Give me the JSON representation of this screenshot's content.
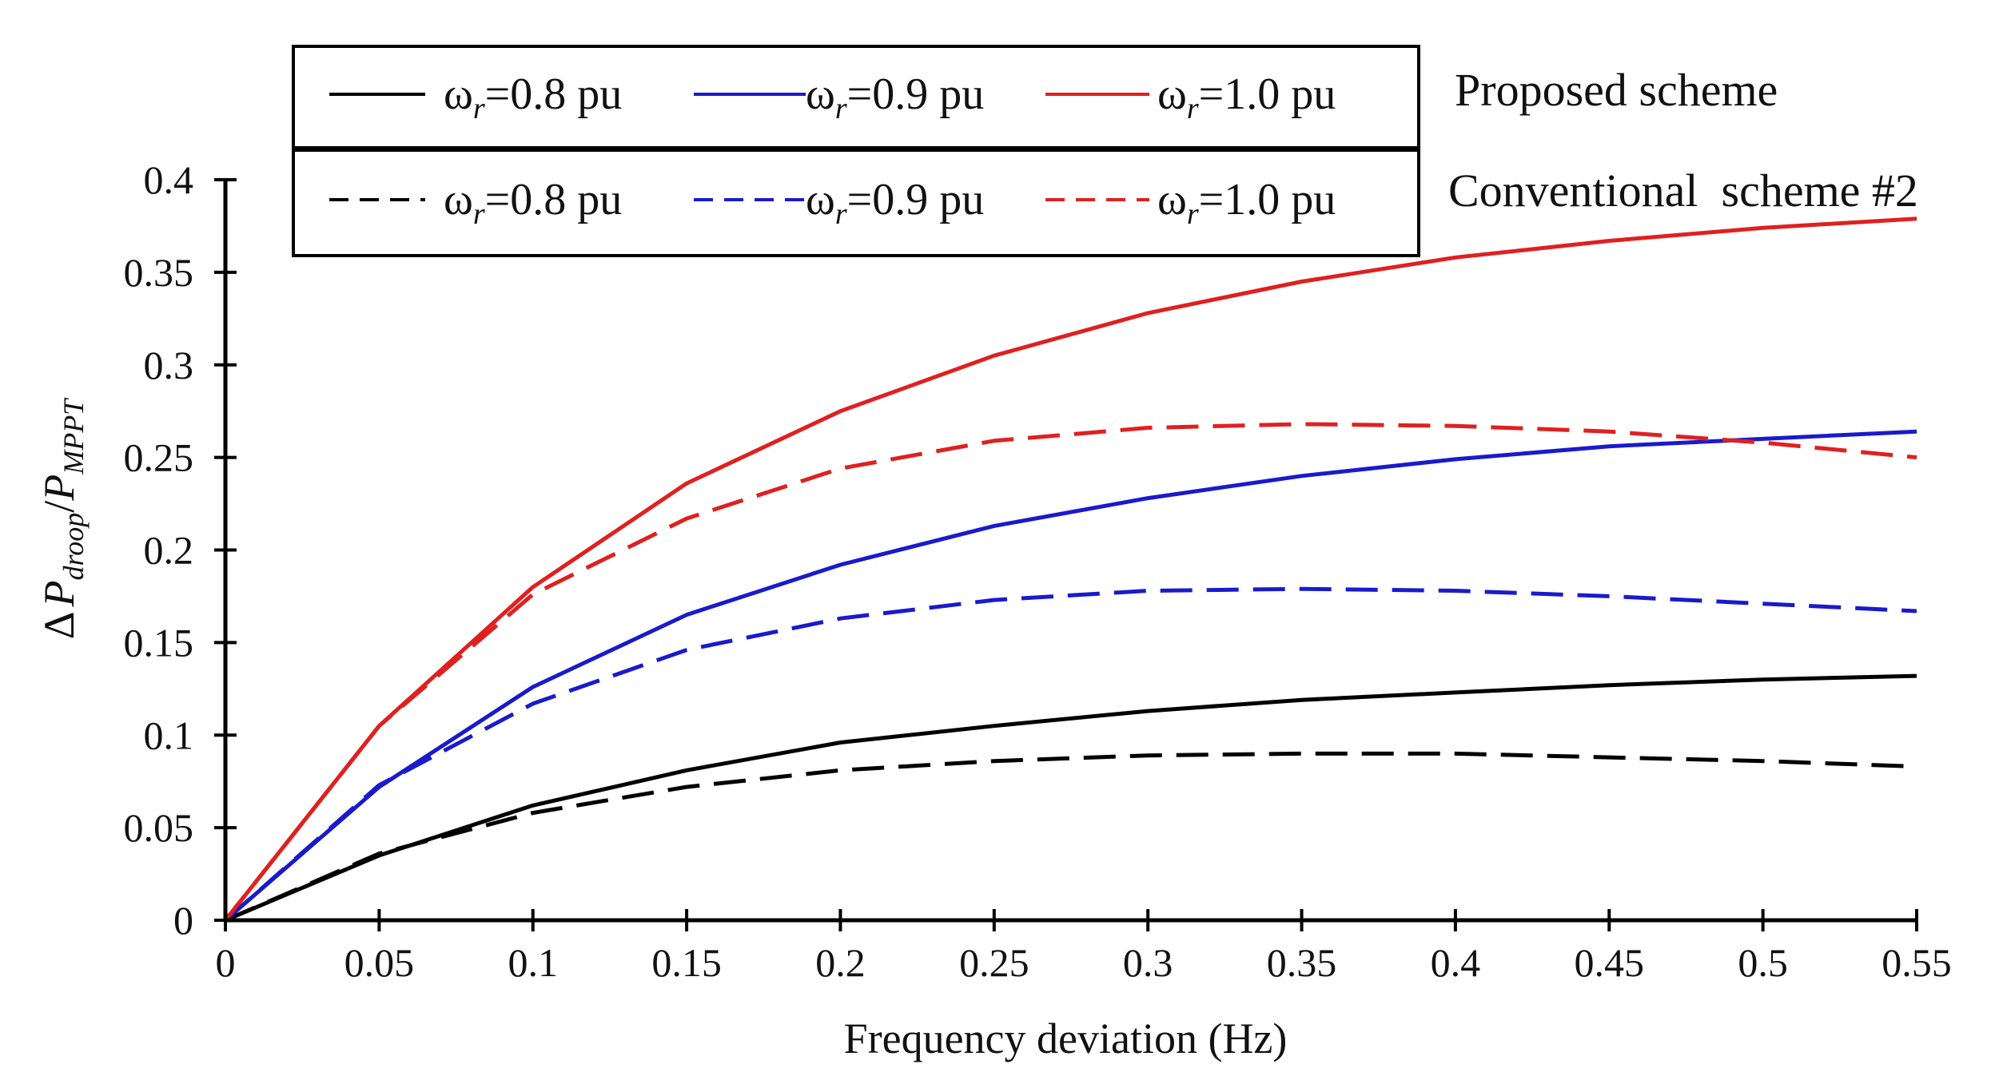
{
  "chart_data": {
    "type": "line",
    "xlabel": "Frequency deviation (Hz)",
    "ylabel": {
      "delta": "Δ",
      "p1": "P",
      "sub1": "droop",
      "slash": "/",
      "p2": "P",
      "sub2": "MPPT"
    },
    "xlim": [
      0,
      0.55
    ],
    "ylim": [
      0,
      0.4
    ],
    "x_ticks": [
      "0",
      "0.05",
      "0.1",
      "0.15",
      "0.2",
      "0.25",
      "0.3",
      "0.35",
      "0.4",
      "0.45",
      "0.5",
      "0.55"
    ],
    "y_ticks": [
      "0",
      "0.05",
      "0.1",
      "0.15",
      "0.2",
      "0.25",
      "0.3",
      "0.35",
      "0.4"
    ],
    "x": [
      0,
      0.05,
      0.1,
      0.15,
      0.2,
      0.25,
      0.3,
      0.35,
      0.4,
      0.45,
      0.5,
      0.55
    ],
    "legend_groups": [
      {
        "label": "Proposed scheme",
        "style": "solid"
      },
      {
        "label": "Conventional  scheme #2",
        "style": "dashed"
      }
    ],
    "series": [
      {
        "name": "ωr=0.8 pu",
        "sym": "ω",
        "sub": "r",
        "rest": "=0.8 pu",
        "group": "Proposed scheme",
        "style": "solid",
        "color": "#000000",
        "values": [
          0,
          0.035,
          0.062,
          0.081,
          0.096,
          0.105,
          0.113,
          0.119,
          0.123,
          0.127,
          0.13,
          0.132
        ]
      },
      {
        "name": "ωr=0.9 pu",
        "sym": "ω",
        "sub": "r",
        "rest": "=0.9 pu",
        "group": "Proposed scheme",
        "style": "solid",
        "color": "#1a1acc",
        "values": [
          0,
          0.072,
          0.126,
          0.165,
          0.192,
          0.213,
          0.228,
          0.24,
          0.249,
          0.256,
          0.26,
          0.264
        ]
      },
      {
        "name": "ωr=1.0 pu",
        "sym": "ω",
        "sub": "r",
        "rest": "=1.0 pu",
        "group": "Proposed scheme",
        "style": "solid",
        "color": "#e02020",
        "values": [
          0,
          0.105,
          0.18,
          0.236,
          0.275,
          0.305,
          0.328,
          0.345,
          0.358,
          0.367,
          0.374,
          0.379
        ]
      },
      {
        "name": "ωr=0.8 pu",
        "sym": "ω",
        "sub": "r",
        "rest": "=0.8 pu",
        "group": "Conventional  scheme #2",
        "style": "dashed",
        "color": "#000000",
        "values": [
          0,
          0.036,
          0.058,
          0.072,
          0.081,
          0.086,
          0.089,
          0.09,
          0.09,
          0.088,
          0.086,
          0.083
        ]
      },
      {
        "name": "ωr=0.9 pu",
        "sym": "ω",
        "sub": "r",
        "rest": "=0.9 pu",
        "group": "Conventional  scheme #2",
        "style": "dashed",
        "color": "#1a1acc",
        "values": [
          0,
          0.073,
          0.117,
          0.146,
          0.163,
          0.173,
          0.178,
          0.179,
          0.178,
          0.175,
          0.171,
          0.167
        ]
      },
      {
        "name": "ωr=1.0 pu",
        "sym": "ω",
        "sub": "r",
        "rest": "=1.0 pu",
        "group": "Conventional  scheme #2",
        "style": "dashed",
        "color": "#e02020",
        "values": [
          0,
          0.105,
          0.176,
          0.217,
          0.244,
          0.259,
          0.266,
          0.268,
          0.267,
          0.264,
          0.258,
          0.25
        ]
      }
    ]
  }
}
